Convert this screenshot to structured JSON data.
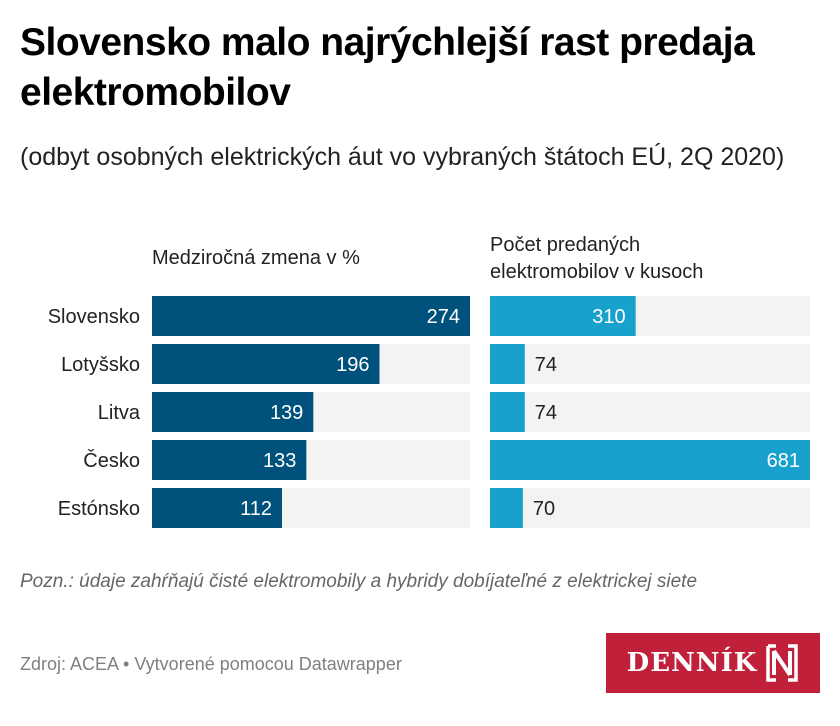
{
  "header": {
    "title": "Slovensko malo najrýchlejší rast predaja elektromobilov",
    "subtitle": "(odbyt osobných elektrických áut vo vybraných štátoch EÚ, 2Q 2020)"
  },
  "colors": {
    "left_bar": "#00527c",
    "right_bar": "#18a1cd",
    "track": "#f3f3f3",
    "label_inside": "#ffffff",
    "label_outside": "#222222",
    "brand": "#c0203a"
  },
  "chart_data": {
    "type": "bar",
    "orientation": "horizontal",
    "title": "Slovensko malo najrýchlejší rast predaja elektromobilov",
    "subtitle": "(odbyt osobných elektrických áut vo vybraných štátoch EÚ, 2Q 2020)",
    "categories": [
      "Slovensko",
      "Lotyšsko",
      "Litva",
      "Česko",
      "Estónsko"
    ],
    "series": [
      {
        "name": "Medziročná zmena v %",
        "values": [
          274,
          196,
          139,
          133,
          112
        ],
        "xlim": [
          0,
          274
        ]
      },
      {
        "name": "Počet predaných elektromobilov v kusoch",
        "values": [
          310,
          74,
          74,
          681,
          70
        ],
        "xlim": [
          0,
          681
        ]
      }
    ],
    "grid": false,
    "legend": "none"
  },
  "columns": {
    "left_header": "Medziročná zmena v %",
    "right_header_line1": "Počet predaných",
    "right_header_line2": "elektromobilov v kusoch"
  },
  "footer": {
    "note": "Pozn.: údaje zahŕňajú čisté elektromobily a hybridy dobíjateľné z elektrickej siete",
    "source": "Zdroj: ACEA • Vytvorené pomocou Datawrapper",
    "logo_text": "DENNÍK"
  }
}
